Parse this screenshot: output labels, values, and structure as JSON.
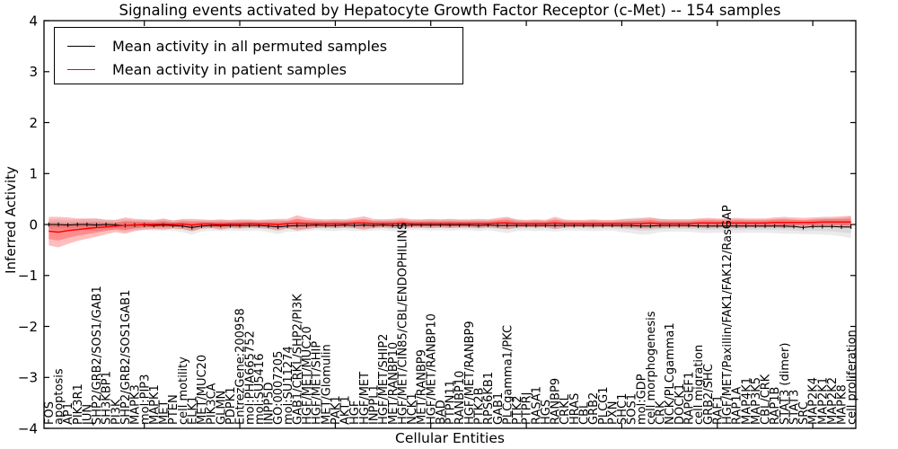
{
  "title": "Signaling events activated by Hepatocyte Growth Factor Receptor (c-Met) -- 154 samples",
  "colors": {
    "permuted_line": "#000000",
    "patient_line": "#ff0000",
    "permuted_band": "#d9d9d9",
    "patient_band": "#f19090",
    "frame": "#000000",
    "background": "#ffffff"
  },
  "chart_data": {
    "type": "line",
    "title": "Signaling events activated by Hepatocyte Growth Factor Receptor (c-Met) -- 154 samples",
    "xlabel": "Cellular Entities",
    "ylabel": "Inferred Activity",
    "ylim": [
      -4,
      4
    ],
    "yticks": [
      4,
      3,
      2,
      1,
      0,
      -1,
      -2,
      -3,
      -4
    ],
    "ytick_labels": [
      "4",
      "3",
      "2",
      "1",
      "0",
      "−1",
      "−2",
      "−3",
      "−4"
    ],
    "grid": false,
    "legend_position": "upper left",
    "categories": [
      "FOS",
      "apoptosis",
      "AP1",
      "PIK3R1",
      "JUN",
      "SHP2/GRB2/SOS1/GAB1",
      "SH3KBP1",
      "PI3K",
      "SHP2/GRB2/SOS1GAB1",
      "MAPK3",
      "mol:PIP3",
      "MAPK1",
      "MET",
      "PTEN",
      "cell motility",
      "ELK1",
      "MET/MUC20",
      "PIK3CA",
      "GLMN",
      "PDPK1",
      "EntrezGene:200958",
      "mol:PHA665752",
      "mol:SU5416",
      "INPP5D",
      "GO:0007205",
      "mol:SU11274",
      "GAB1/CRKL/SHP2/PI3K",
      "HGF/MET/MUC20",
      "HGF/MET/SHIP",
      "MET/Glomulin",
      "PAK1",
      "AKT1",
      "HGF",
      "HGF/MET",
      "INPPL1",
      "HGF/MET/SHIP2",
      "MET/RANBP10",
      "HGF/MET/CIN85/CBL/ENDOPHILINS",
      "NCK1",
      "MET/RANBP9",
      "HGF/MET/RANBP10",
      "BAD",
      "PTPN11",
      "RANBP10",
      "HGF/MET/RANBP9",
      "PTK2B",
      "RPS6KB1",
      "GAB1",
      "PLCgamma1/PKC",
      "PTK2",
      "PTPRJ",
      "RASA1",
      "HGS",
      "RANBP9",
      "CRKL",
      "HRAS",
      "CBL",
      "GRB2",
      "PLCG1",
      "PXN",
      "SHC1",
      "SOS1",
      "mol:GDP",
      "cell morphogenesis",
      "CRK",
      "NCK/PLCgamma1",
      "DOCK1",
      "RAPGEF1",
      "cell migration",
      "GRB2/SHC",
      "RAF1",
      "HGF/MET/Paxillin/FAK1/FAK12/RasGAP",
      "RAP1A",
      "MAP4K1",
      "MAP3K5",
      "CBL/CRK",
      "RAP1B",
      "STAT3 (dimer)",
      "STAT3",
      "SRC",
      "MAP2K4",
      "MAP2K1",
      "MAP2K2",
      "MAPK8",
      "cell proliferation"
    ],
    "series": [
      {
        "name": "Mean activity in all permuted samples",
        "color": "#000000",
        "band_color": "#777777",
        "values": [
          0.0,
          0.0,
          -0.01,
          0.0,
          0.0,
          -0.01,
          0.0,
          -0.01,
          -0.02,
          -0.01,
          -0.01,
          -0.02,
          -0.01,
          -0.02,
          -0.03,
          -0.06,
          -0.03,
          -0.02,
          -0.02,
          -0.02,
          -0.02,
          -0.02,
          -0.02,
          -0.03,
          -0.05,
          -0.03,
          -0.02,
          -0.02,
          -0.01,
          -0.02,
          -0.02,
          -0.01,
          -0.02,
          -0.01,
          -0.02,
          -0.01,
          -0.02,
          -0.02,
          -0.01,
          -0.01,
          -0.01,
          -0.01,
          -0.01,
          -0.01,
          -0.01,
          -0.02,
          -0.01,
          -0.02,
          -0.02,
          -0.02,
          -0.02,
          -0.02,
          -0.02,
          -0.02,
          -0.02,
          -0.02,
          -0.02,
          -0.02,
          -0.02,
          -0.02,
          -0.02,
          -0.02,
          -0.03,
          -0.03,
          -0.02,
          -0.02,
          -0.02,
          -0.02,
          -0.03,
          -0.03,
          -0.03,
          -0.03,
          -0.03,
          -0.03,
          -0.03,
          -0.03,
          -0.03,
          -0.03,
          -0.04,
          -0.06,
          -0.04,
          -0.04,
          -0.04,
          -0.05,
          -0.05
        ],
        "band": [
          0.1,
          0.1,
          0.1,
          0.1,
          0.11,
          0.12,
          0.1,
          0.1,
          0.12,
          0.1,
          0.1,
          0.1,
          0.11,
          0.1,
          0.12,
          0.14,
          0.11,
          0.1,
          0.11,
          0.1,
          0.11,
          0.1,
          0.1,
          0.12,
          0.14,
          0.11,
          0.12,
          0.11,
          0.1,
          0.1,
          0.11,
          0.1,
          0.11,
          0.12,
          0.1,
          0.1,
          0.11,
          0.12,
          0.1,
          0.1,
          0.11,
          0.1,
          0.11,
          0.1,
          0.1,
          0.11,
          0.1,
          0.12,
          0.15,
          0.11,
          0.1,
          0.11,
          0.1,
          0.12,
          0.1,
          0.1,
          0.1,
          0.11,
          0.1,
          0.1,
          0.13,
          0.15,
          0.17,
          0.16,
          0.13,
          0.12,
          0.12,
          0.12,
          0.13,
          0.14,
          0.13,
          0.13,
          0.14,
          0.13,
          0.13,
          0.13,
          0.14,
          0.15,
          0.14,
          0.13,
          0.15,
          0.16,
          0.17,
          0.18,
          0.22
        ]
      },
      {
        "name": "Mean activity in patient samples",
        "color": "#ff0000",
        "band_color": "#ff0000",
        "values": [
          -0.13,
          -0.15,
          -0.12,
          -0.1,
          -0.08,
          -0.06,
          -0.05,
          -0.03,
          -0.02,
          -0.01,
          0.0,
          0.0,
          0.01,
          0.0,
          0.01,
          -0.01,
          0.01,
          0.01,
          0.0,
          0.01,
          0.01,
          0.02,
          0.01,
          0.01,
          0.0,
          0.02,
          0.03,
          0.02,
          0.02,
          0.02,
          0.02,
          0.02,
          0.03,
          0.03,
          0.02,
          0.02,
          0.02,
          0.03,
          0.02,
          0.02,
          0.02,
          0.02,
          0.02,
          0.02,
          0.02,
          0.02,
          0.02,
          0.03,
          0.03,
          0.02,
          0.02,
          0.02,
          0.02,
          0.03,
          0.02,
          0.02,
          0.02,
          0.02,
          0.02,
          0.02,
          0.02,
          0.02,
          0.02,
          0.03,
          0.02,
          0.02,
          0.02,
          0.02,
          0.03,
          0.03,
          0.03,
          0.03,
          0.03,
          0.03,
          0.03,
          0.03,
          0.04,
          0.04,
          0.04,
          0.04,
          0.04,
          0.05,
          0.05,
          0.05,
          0.05
        ],
        "band": [
          0.28,
          0.3,
          0.26,
          0.22,
          0.2,
          0.18,
          0.14,
          0.12,
          0.16,
          0.12,
          0.1,
          0.09,
          0.11,
          0.08,
          0.1,
          0.12,
          0.09,
          0.08,
          0.1,
          0.08,
          0.09,
          0.08,
          0.08,
          0.09,
          0.11,
          0.09,
          0.15,
          0.11,
          0.09,
          0.08,
          0.09,
          0.08,
          0.1,
          0.13,
          0.09,
          0.08,
          0.09,
          0.1,
          0.08,
          0.08,
          0.09,
          0.08,
          0.09,
          0.08,
          0.08,
          0.09,
          0.08,
          0.1,
          0.12,
          0.08,
          0.07,
          0.08,
          0.07,
          0.12,
          0.08,
          0.07,
          0.07,
          0.08,
          0.07,
          0.07,
          0.08,
          0.09,
          0.1,
          0.11,
          0.09,
          0.08,
          0.08,
          0.08,
          0.09,
          0.1,
          0.09,
          0.09,
          0.1,
          0.09,
          0.09,
          0.09,
          0.1,
          0.11,
          0.1,
          0.09,
          0.1,
          0.1,
          0.1,
          0.11,
          0.12
        ]
      }
    ]
  }
}
